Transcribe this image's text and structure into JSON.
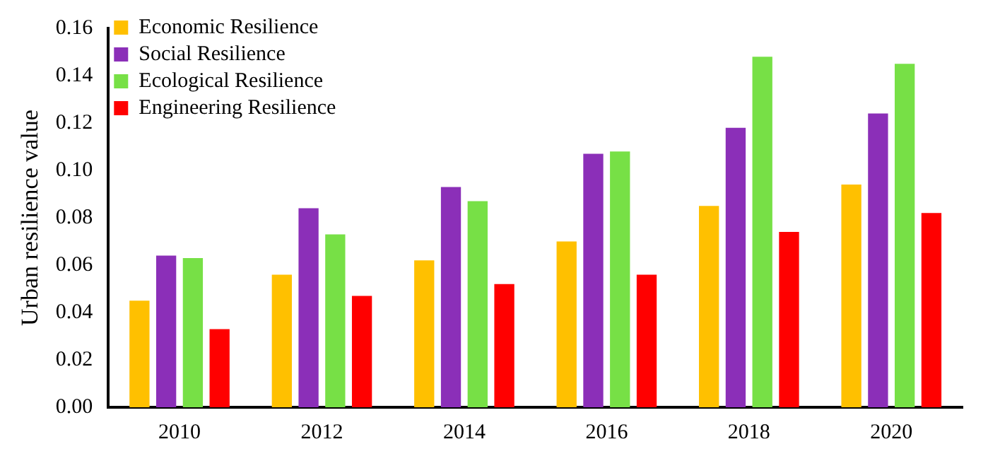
{
  "chart_data": {
    "type": "bar",
    "ylabel": "Urban resilience value",
    "categories": [
      "2010",
      "2012",
      "2014",
      "2016",
      "2018",
      "2020"
    ],
    "series": [
      {
        "name": "Economic Resilience",
        "color": "#ffc000",
        "values": [
          0.045,
          0.056,
          0.062,
          0.07,
          0.085,
          0.094
        ]
      },
      {
        "name": "Social Resilience",
        "color": "#8b2fb8",
        "values": [
          0.064,
          0.084,
          0.093,
          0.107,
          0.118,
          0.124
        ]
      },
      {
        "name": "Ecological Resilience",
        "color": "#77e046",
        "values": [
          0.063,
          0.073,
          0.087,
          0.108,
          0.148,
          0.145
        ]
      },
      {
        "name": "Engineering Resilience",
        "color": "#ff0000",
        "values": [
          0.033,
          0.047,
          0.052,
          0.056,
          0.074,
          0.082
        ]
      }
    ],
    "ylim": [
      0,
      0.16
    ],
    "yticks": [
      {
        "value": 0,
        "label": "0.00"
      },
      0.02,
      0.04,
      0.06,
      0.08,
      {
        "value": 0.1,
        "label": "0.10"
      },
      0.12,
      0.14,
      0.16
    ],
    "grid": false,
    "legend": "top left"
  }
}
